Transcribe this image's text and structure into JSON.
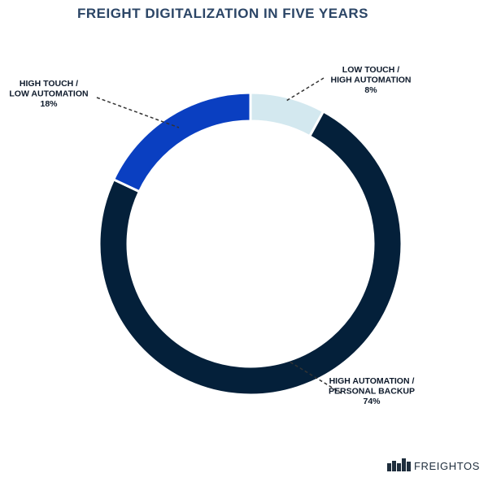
{
  "chart_data": {
    "type": "pie",
    "title": "FREIGHT DIGITALIZATION IN FIVE YEARS",
    "donut": true,
    "start_angle_deg": 0,
    "direction": "clockwise",
    "slices": [
      {
        "label_lines": [
          "LOW TOUCH /",
          "HIGH AUTOMATION"
        ],
        "value_label": "8%",
        "value": 8,
        "color": "#d3e8ef"
      },
      {
        "label_lines": [
          "HIGH AUTOMATION /",
          "PERSONAL BACKUP"
        ],
        "value_label": "74%",
        "value": 74,
        "color": "#04203a"
      },
      {
        "label_lines": [
          "HIGH TOUCH /",
          "LOW AUTOMATION"
        ],
        "value_label": "18%",
        "value": 18,
        "color": "#0a3fc1"
      }
    ]
  },
  "brand": {
    "name": "FREIGHTOS",
    "logo_icon": "freightos-containers-icon"
  },
  "colors": {
    "title": "#2b4566",
    "labels": "#0e1a2b",
    "leader_lines": "#333333",
    "separator": "#ffffff",
    "brand_text": "#1f2e3d"
  }
}
